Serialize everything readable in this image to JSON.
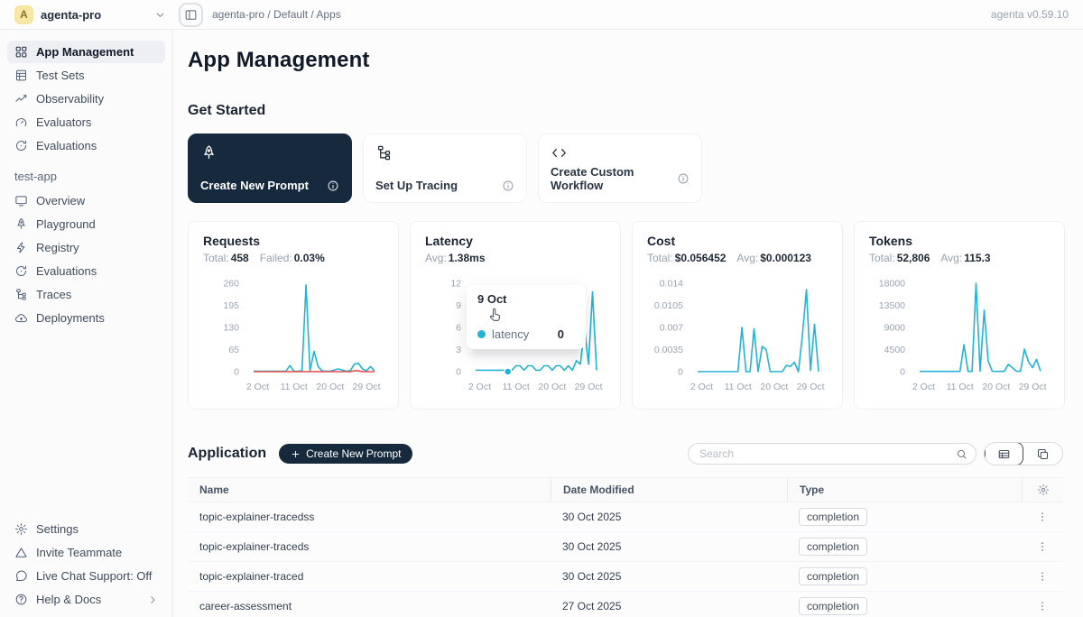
{
  "topbar": {
    "workspace_initial": "A",
    "workspace_name": "agenta-pro",
    "breadcrumb": "agenta-pro / Default / Apps",
    "version": "agenta v0.59.10"
  },
  "sidebar": {
    "main_items": [
      {
        "label": "App Management"
      },
      {
        "label": "Test Sets"
      },
      {
        "label": "Observability"
      },
      {
        "label": "Evaluators"
      },
      {
        "label": "Evaluations"
      }
    ],
    "section_label": "test-app",
    "app_items": [
      {
        "label": "Overview"
      },
      {
        "label": "Playground"
      },
      {
        "label": "Registry"
      },
      {
        "label": "Evaluations"
      },
      {
        "label": "Traces"
      },
      {
        "label": "Deployments"
      }
    ],
    "footer_items": [
      {
        "label": "Settings"
      },
      {
        "label": "Invite Teammate"
      },
      {
        "label": "Live Chat Support: Off"
      },
      {
        "label": "Help & Docs"
      }
    ]
  },
  "main": {
    "page_title": "App Management",
    "get_started_title": "Get Started",
    "cards": [
      {
        "label": "Create New Prompt"
      },
      {
        "label": "Set Up Tracing"
      },
      {
        "label": "Create Custom Workflow"
      }
    ],
    "application": {
      "title": "Application",
      "create_button": "Create New Prompt",
      "search_placeholder": "Search",
      "table": {
        "columns": [
          "Name",
          "Date Modified",
          "Type"
        ],
        "rows": [
          {
            "name": "topic-explainer-tracedss",
            "date": "30 Oct 2025",
            "type": "completion"
          },
          {
            "name": "topic-explainer-traceds",
            "date": "30 Oct 2025",
            "type": "completion"
          },
          {
            "name": "topic-explainer-traced",
            "date": "30 Oct 2025",
            "type": "completion"
          },
          {
            "name": "career-assessment",
            "date": "27 Oct 2025",
            "type": "completion"
          }
        ]
      }
    }
  },
  "tooltip": {
    "title": "9 Oct",
    "label": "latency",
    "value": "0"
  },
  "colors": {
    "accent_blue": "#24b3d6",
    "accent_red": "#e84a4a",
    "dark_navy": "#172a3d"
  },
  "chart_data": [
    {
      "type": "line",
      "title": "Requests",
      "stats": [
        {
          "label": "Total:",
          "value": "458"
        },
        {
          "label": "Failed:",
          "value": "0.03%"
        }
      ],
      "days": 31,
      "x_range": [
        "1 Oct",
        "31 Oct"
      ],
      "x_ticks": [
        {
          "day": 2,
          "label": "2 Oct"
        },
        {
          "day": 11,
          "label": "11 Oct"
        },
        {
          "day": 20,
          "label": "20 Oct"
        },
        {
          "day": 29,
          "label": "29 Oct"
        }
      ],
      "ylim": [
        0,
        260
      ],
      "yticks": [
        {
          "value": 0,
          "label": "0"
        },
        {
          "value": 65,
          "label": "65"
        },
        {
          "value": 130,
          "label": "130"
        },
        {
          "value": 195,
          "label": "195"
        },
        {
          "value": 260,
          "label": "260"
        }
      ],
      "grid": false,
      "legend": "none",
      "series": [
        {
          "name": "requests",
          "color": "#24b3d6",
          "values": [
            1,
            1,
            1,
            1,
            1,
            1,
            1,
            1,
            1,
            18,
            1,
            1,
            2,
            255,
            3,
            60,
            15,
            2,
            1,
            1,
            5,
            8,
            5,
            1,
            3,
            22,
            25,
            8,
            3,
            15,
            2
          ]
        },
        {
          "name": "failed",
          "color": "#e84a4a",
          "values": [
            0,
            0,
            0,
            0,
            0,
            0,
            0,
            0,
            0,
            0,
            0,
            0,
            0,
            0,
            0,
            0,
            0,
            0,
            0,
            0,
            0,
            0,
            0,
            0,
            0,
            3,
            2,
            0,
            0,
            0,
            0
          ]
        }
      ]
    },
    {
      "type": "line",
      "title": "Latency",
      "stats": [
        {
          "label": "Avg:",
          "value": "1.38ms"
        }
      ],
      "days": 31,
      "x_range": [
        "1 Oct",
        "31 Oct"
      ],
      "x_ticks": [
        {
          "day": 2,
          "label": "2 Oct"
        },
        {
          "day": 11,
          "label": "11 Oct"
        },
        {
          "day": 20,
          "label": "20 Oct"
        },
        {
          "day": 29,
          "label": "29 Oct"
        }
      ],
      "ylim": [
        0,
        12
      ],
      "yticks": [
        {
          "value": 0,
          "label": "0"
        },
        {
          "value": 3,
          "label": "3"
        },
        {
          "value": 6,
          "label": "6"
        },
        {
          "value": 9,
          "label": "9"
        },
        {
          "value": 12,
          "label": "12"
        }
      ],
      "grid": false,
      "legend": "none",
      "active_point": {
        "day": 9,
        "value": 0,
        "hover_label": "9 Oct"
      },
      "series": [
        {
          "name": "latency",
          "color": "#24b3d6",
          "values": [
            0.2,
            0.2,
            0.2,
            0.2,
            0.2,
            0.2,
            0.2,
            0.2,
            0,
            0.2,
            0.8,
            0.8,
            0.2,
            0.8,
            0.8,
            0.2,
            0.2,
            0.8,
            0.8,
            0.2,
            0.8,
            0.8,
            0.2,
            0.8,
            0.2,
            1.5,
            1,
            6,
            1,
            10.8,
            0.2
          ]
        }
      ]
    },
    {
      "type": "line",
      "title": "Cost",
      "stats": [
        {
          "label": "Total:",
          "value": "$0.056452"
        },
        {
          "label": "Avg:",
          "value": "$0.000123"
        }
      ],
      "days": 31,
      "x_range": [
        "1 Oct",
        "31 Oct"
      ],
      "x_ticks": [
        {
          "day": 2,
          "label": "2 Oct"
        },
        {
          "day": 11,
          "label": "11 Oct"
        },
        {
          "day": 20,
          "label": "20 Oct"
        },
        {
          "day": 29,
          "label": "29 Oct"
        }
      ],
      "ylim": [
        0,
        0.014
      ],
      "yticks": [
        {
          "value": 0,
          "label": "0"
        },
        {
          "value": 0.0035,
          "label": "0.0035"
        },
        {
          "value": 0.007,
          "label": "0.007"
        },
        {
          "value": 0.0105,
          "label": "0.0105"
        },
        {
          "value": 0.014,
          "label": "0.014"
        }
      ],
      "grid": false,
      "legend": "none",
      "series": [
        {
          "name": "cost",
          "color": "#24b3d6",
          "values": [
            0,
            0,
            0,
            0,
            0,
            0,
            0,
            0,
            0,
            0,
            0,
            0.007,
            0,
            0,
            0.0068,
            0,
            0.004,
            0.0035,
            0,
            0,
            0,
            0,
            0.001,
            0.0008,
            0.0015,
            0,
            0.0058,
            0.013,
            0.0002,
            0.0075,
            0
          ]
        }
      ]
    },
    {
      "type": "line",
      "title": "Tokens",
      "stats": [
        {
          "label": "Total:",
          "value": "52,806"
        },
        {
          "label": "Avg:",
          "value": "115.3"
        }
      ],
      "days": 31,
      "x_range": [
        "1 Oct",
        "31 Oct"
      ],
      "x_ticks": [
        {
          "day": 2,
          "label": "2 Oct"
        },
        {
          "day": 11,
          "label": "11 Oct"
        },
        {
          "day": 20,
          "label": "20 Oct"
        },
        {
          "day": 29,
          "label": "29 Oct"
        }
      ],
      "ylim": [
        0,
        18000
      ],
      "yticks": [
        {
          "value": 0,
          "label": "0"
        },
        {
          "value": 4500,
          "label": "4500"
        },
        {
          "value": 9000,
          "label": "9000"
        },
        {
          "value": 13500,
          "label": "13500"
        },
        {
          "value": 18000,
          "label": "18000"
        }
      ],
      "grid": false,
      "legend": "none",
      "series": [
        {
          "name": "tokens",
          "color": "#24b3d6",
          "values": [
            50,
            50,
            50,
            50,
            50,
            50,
            50,
            50,
            50,
            50,
            50,
            5500,
            50,
            50,
            18000,
            100,
            12500,
            2200,
            100,
            50,
            50,
            50,
            1500,
            800,
            100,
            50,
            4600,
            2000,
            800,
            2500,
            100
          ]
        }
      ]
    }
  ]
}
